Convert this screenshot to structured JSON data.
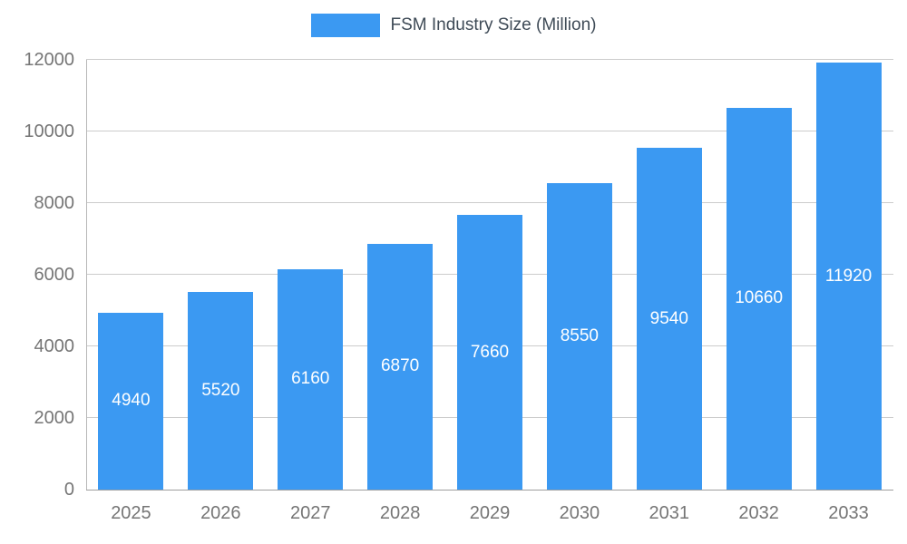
{
  "legend": {
    "label": "FSM Industry Size (Million)"
  },
  "colors": {
    "bar": "#3b99f2",
    "grid": "#cccccc",
    "baseline": "#9e9e9e",
    "axis_line": "#b8b8b8",
    "tick_text": "#757575",
    "legend_text": "#3e4a56",
    "value_text": "#ffffff",
    "background": "#ffffff"
  },
  "chart_data": {
    "type": "bar",
    "title": "FSM Industry Size (Million)",
    "categories": [
      "2025",
      "2026",
      "2027",
      "2028",
      "2029",
      "2030",
      "2031",
      "2032",
      "2033"
    ],
    "values": [
      4940,
      5520,
      6160,
      6870,
      7660,
      8550,
      9540,
      10660,
      11920
    ],
    "xlabel": "",
    "ylabel": "",
    "ylim": [
      0,
      12000
    ],
    "ytick_step": 2000,
    "ytick_labels": [
      "0",
      "2000",
      "4000",
      "6000",
      "8000",
      "10000",
      "12000"
    ],
    "grid": true,
    "legend_position": "top",
    "value_labels": "inside-center"
  }
}
